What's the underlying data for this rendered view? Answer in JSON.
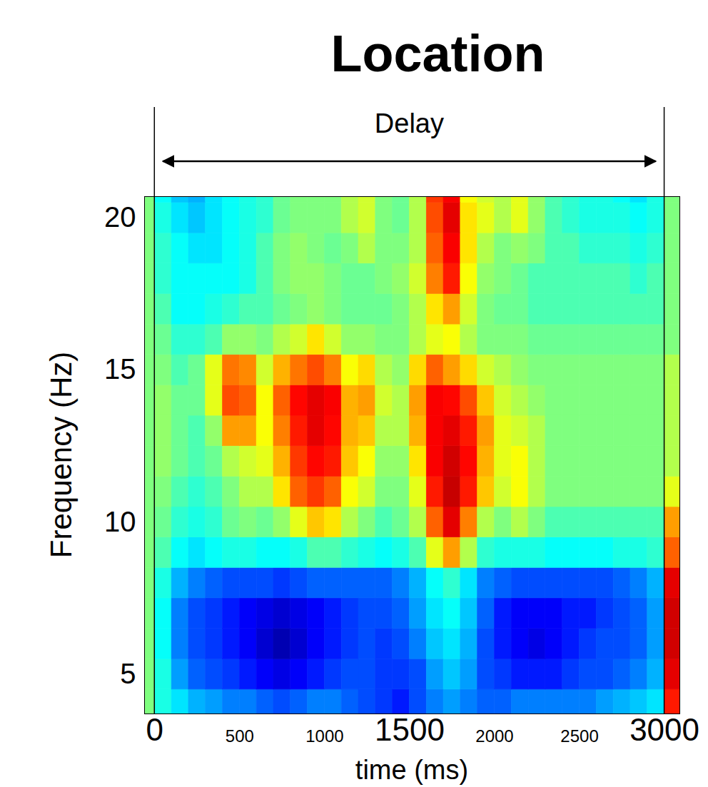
{
  "chart_data": {
    "type": "heatmap",
    "title": "Location",
    "annotation": "Delay",
    "events": [
      0,
      3000
    ],
    "x_label": "time (ms)",
    "y_label": "Frequency (Hz)",
    "xlim": [
      -60,
      3090
    ],
    "ylim": [
      3.7,
      20.7
    ],
    "xticks": [
      0,
      500,
      1000,
      1500,
      2000,
      2500,
      3000
    ],
    "yticks": [
      5,
      10,
      15,
      20
    ],
    "color": "jet",
    "color_range": [
      0,
      1
    ],
    "cells": {
      "x": [
        -50,
        50,
        150,
        250,
        350,
        450,
        550,
        650,
        750,
        850,
        950,
        1050,
        1150,
        1250,
        1350,
        1450,
        1550,
        1650,
        1750,
        1850,
        1950,
        2050,
        2150,
        2250,
        2350,
        2450,
        2550,
        2650,
        2750,
        2850,
        2950,
        3050
      ],
      "y": [
        4,
        5,
        6,
        7,
        8,
        9,
        10,
        11,
        12,
        13,
        14,
        15,
        16,
        17,
        18,
        19,
        20,
        21
      ],
      "z": [
        [
          0.5,
          0.4,
          0.35,
          0.3,
          0.28,
          0.25,
          0.25,
          0.22,
          0.2,
          0.22,
          0.25,
          0.25,
          0.22,
          0.2,
          0.18,
          0.15,
          0.2,
          0.25,
          0.28,
          0.25,
          0.22,
          0.22,
          0.25,
          0.25,
          0.25,
          0.25,
          0.25,
          0.28,
          0.3,
          0.32,
          0.35,
          0.85
        ],
        [
          0.5,
          0.4,
          0.28,
          0.22,
          0.2,
          0.18,
          0.15,
          0.12,
          0.1,
          0.12,
          0.15,
          0.18,
          0.2,
          0.2,
          0.18,
          0.18,
          0.2,
          0.28,
          0.32,
          0.28,
          0.2,
          0.18,
          0.15,
          0.15,
          0.15,
          0.18,
          0.2,
          0.2,
          0.22,
          0.25,
          0.3,
          0.9
        ],
        [
          0.5,
          0.38,
          0.25,
          0.2,
          0.18,
          0.15,
          0.12,
          0.08,
          0.05,
          0.08,
          0.12,
          0.15,
          0.18,
          0.2,
          0.18,
          0.2,
          0.25,
          0.32,
          0.35,
          0.3,
          0.2,
          0.15,
          0.12,
          0.1,
          0.12,
          0.15,
          0.18,
          0.2,
          0.2,
          0.22,
          0.28,
          0.92
        ],
        [
          0.5,
          0.38,
          0.25,
          0.2,
          0.18,
          0.15,
          0.12,
          0.1,
          0.08,
          0.1,
          0.12,
          0.15,
          0.18,
          0.2,
          0.2,
          0.22,
          0.28,
          0.35,
          0.38,
          0.32,
          0.22,
          0.15,
          0.12,
          0.12,
          0.12,
          0.15,
          0.15,
          0.18,
          0.2,
          0.22,
          0.28,
          0.92
        ],
        [
          0.5,
          0.4,
          0.3,
          0.25,
          0.22,
          0.2,
          0.2,
          0.2,
          0.18,
          0.2,
          0.22,
          0.22,
          0.22,
          0.22,
          0.22,
          0.25,
          0.3,
          0.38,
          0.42,
          0.35,
          0.25,
          0.22,
          0.2,
          0.2,
          0.2,
          0.2,
          0.2,
          0.2,
          0.22,
          0.25,
          0.3,
          0.9
        ],
        [
          0.5,
          0.45,
          0.38,
          0.35,
          0.38,
          0.4,
          0.4,
          0.38,
          0.38,
          0.4,
          0.45,
          0.45,
          0.42,
          0.4,
          0.38,
          0.4,
          0.45,
          0.6,
          0.72,
          0.55,
          0.42,
          0.4,
          0.4,
          0.4,
          0.38,
          0.38,
          0.38,
          0.38,
          0.4,
          0.4,
          0.42,
          0.78
        ],
        [
          0.5,
          0.48,
          0.42,
          0.4,
          0.42,
          0.48,
          0.5,
          0.48,
          0.52,
          0.6,
          0.68,
          0.65,
          0.55,
          0.5,
          0.45,
          0.48,
          0.55,
          0.78,
          0.9,
          0.75,
          0.55,
          0.5,
          0.55,
          0.5,
          0.45,
          0.45,
          0.45,
          0.45,
          0.45,
          0.45,
          0.45,
          0.72
        ],
        [
          0.5,
          0.5,
          0.45,
          0.42,
          0.45,
          0.5,
          0.55,
          0.55,
          0.65,
          0.78,
          0.82,
          0.78,
          0.62,
          0.58,
          0.5,
          0.5,
          0.6,
          0.85,
          0.93,
          0.85,
          0.68,
          0.58,
          0.62,
          0.55,
          0.5,
          0.5,
          0.5,
          0.5,
          0.5,
          0.5,
          0.5,
          0.6
        ],
        [
          0.5,
          0.52,
          0.48,
          0.45,
          0.48,
          0.55,
          0.58,
          0.6,
          0.7,
          0.82,
          0.87,
          0.85,
          0.68,
          0.62,
          0.52,
          0.52,
          0.65,
          0.88,
          0.92,
          0.87,
          0.7,
          0.6,
          0.62,
          0.55,
          0.5,
          0.5,
          0.5,
          0.5,
          0.5,
          0.5,
          0.5,
          0.55
        ],
        [
          0.5,
          0.52,
          0.48,
          0.45,
          0.52,
          0.72,
          0.72,
          0.62,
          0.75,
          0.85,
          0.9,
          0.87,
          0.7,
          0.68,
          0.55,
          0.55,
          0.7,
          0.88,
          0.9,
          0.85,
          0.72,
          0.6,
          0.58,
          0.55,
          0.5,
          0.5,
          0.5,
          0.5,
          0.5,
          0.5,
          0.5,
          0.55
        ],
        [
          0.5,
          0.52,
          0.48,
          0.48,
          0.6,
          0.8,
          0.78,
          0.62,
          0.78,
          0.87,
          0.9,
          0.88,
          0.7,
          0.72,
          0.58,
          0.55,
          0.72,
          0.88,
          0.87,
          0.8,
          0.68,
          0.58,
          0.55,
          0.52,
          0.5,
          0.5,
          0.5,
          0.5,
          0.5,
          0.5,
          0.5,
          0.55
        ],
        [
          0.5,
          0.5,
          0.45,
          0.48,
          0.6,
          0.76,
          0.74,
          0.58,
          0.7,
          0.76,
          0.8,
          0.75,
          0.62,
          0.66,
          0.55,
          0.52,
          0.66,
          0.78,
          0.72,
          0.66,
          0.58,
          0.55,
          0.52,
          0.5,
          0.5,
          0.5,
          0.5,
          0.5,
          0.5,
          0.5,
          0.5,
          0.55
        ],
        [
          0.5,
          0.48,
          0.42,
          0.42,
          0.45,
          0.52,
          0.52,
          0.5,
          0.55,
          0.58,
          0.65,
          0.58,
          0.52,
          0.52,
          0.5,
          0.5,
          0.55,
          0.6,
          0.62,
          0.55,
          0.5,
          0.5,
          0.5,
          0.48,
          0.48,
          0.48,
          0.48,
          0.48,
          0.48,
          0.48,
          0.48,
          0.5
        ],
        [
          0.5,
          0.45,
          0.38,
          0.38,
          0.4,
          0.42,
          0.45,
          0.45,
          0.48,
          0.5,
          0.52,
          0.5,
          0.48,
          0.48,
          0.48,
          0.5,
          0.55,
          0.65,
          0.72,
          0.58,
          0.5,
          0.48,
          0.48,
          0.45,
          0.45,
          0.45,
          0.45,
          0.45,
          0.45,
          0.45,
          0.45,
          0.5
        ],
        [
          0.5,
          0.42,
          0.38,
          0.38,
          0.38,
          0.38,
          0.4,
          0.45,
          0.5,
          0.52,
          0.52,
          0.5,
          0.48,
          0.48,
          0.5,
          0.52,
          0.58,
          0.75,
          0.85,
          0.62,
          0.52,
          0.5,
          0.48,
          0.45,
          0.45,
          0.45,
          0.45,
          0.45,
          0.45,
          0.42,
          0.45,
          0.5
        ],
        [
          0.5,
          0.42,
          0.38,
          0.35,
          0.35,
          0.38,
          0.4,
          0.45,
          0.5,
          0.52,
          0.5,
          0.48,
          0.5,
          0.55,
          0.5,
          0.5,
          0.55,
          0.78,
          0.88,
          0.65,
          0.55,
          0.5,
          0.52,
          0.5,
          0.45,
          0.45,
          0.42,
          0.42,
          0.42,
          0.4,
          0.42,
          0.5
        ],
        [
          0.5,
          0.4,
          0.35,
          0.32,
          0.35,
          0.38,
          0.4,
          0.42,
          0.48,
          0.5,
          0.5,
          0.5,
          0.55,
          0.58,
          0.5,
          0.48,
          0.55,
          0.8,
          0.9,
          0.65,
          0.6,
          0.55,
          0.6,
          0.52,
          0.45,
          0.42,
          0.4,
          0.4,
          0.4,
          0.38,
          0.4,
          0.5
        ],
        [
          0.5,
          0.38,
          0.32,
          0.3,
          0.35,
          0.38,
          0.4,
          0.42,
          0.48,
          0.5,
          0.5,
          0.5,
          0.55,
          0.58,
          0.5,
          0.48,
          0.55,
          0.82,
          0.88,
          0.62,
          0.58,
          0.55,
          0.6,
          0.52,
          0.45,
          0.42,
          0.4,
          0.4,
          0.38,
          0.35,
          0.4,
          0.5
        ]
      ]
    }
  }
}
